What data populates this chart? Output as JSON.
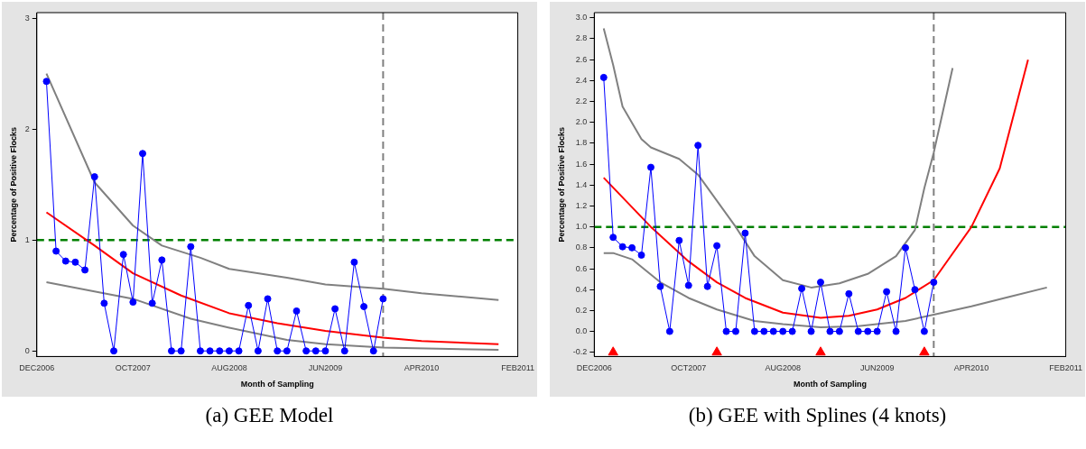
{
  "chart_data": [
    {
      "type": "line",
      "xlabel": "Month of Sampling",
      "ylabel": "Percentage of Positive Flocks",
      "annotations": [
        "(a) GEE Model"
      ],
      "x": [
        "2007-01",
        "2007-02",
        "2007-03",
        "2007-04",
        "2007-05",
        "2007-06",
        "2007-07",
        "2007-08",
        "2007-09",
        "2007-10",
        "2007-11",
        "2007-12",
        "2008-01",
        "2008-02",
        "2008-03",
        "2008-04",
        "2008-05",
        "2008-06",
        "2008-07",
        "2008-08",
        "2008-09",
        "2008-10",
        "2008-11",
        "2008-12",
        "2009-01",
        "2009-02",
        "2009-03",
        "2009-04",
        "2009-05",
        "2009-06",
        "2009-07",
        "2009-08",
        "2009-09",
        "2009-10",
        "2009-11",
        "2009-12"
      ],
      "xlim": [
        "2006-12",
        "2011-02"
      ],
      "xticks": [
        {
          "value": "2006-12",
          "label": "DEC2006"
        },
        {
          "value": "2007-10",
          "label": "OCT2007"
        },
        {
          "value": "2008-08",
          "label": "AUG2008"
        },
        {
          "value": "2009-06",
          "label": "JUN2009"
        },
        {
          "value": "2010-04",
          "label": "APR2010"
        },
        {
          "value": "2011-02",
          "label": "FEB2011"
        }
      ],
      "ylim": [
        -0.05,
        3.05
      ],
      "yticks": [
        0,
        1,
        2,
        3
      ],
      "grid": false,
      "legend": false,
      "series": [
        {
          "color": "#0000ff",
          "marker": "circle",
          "values": [
            2.43,
            0.9,
            0.81,
            0.8,
            0.73,
            1.57,
            0.43,
            0,
            0.87,
            0.44,
            1.78,
            0.43,
            0.82,
            0,
            0,
            0.94,
            0,
            0,
            0,
            0,
            0,
            0.41,
            0,
            0.47,
            0,
            0,
            0.36,
            0,
            0,
            0,
            0.38,
            0,
            0.8,
            0.4,
            0,
            0.47
          ]
        },
        {
          "color": "#ff0000",
          "marker": "none",
          "x": [
            "2007-01",
            "2007-06",
            "2007-10",
            "2008-03",
            "2008-08",
            "2009-01",
            "2009-06",
            "2009-12",
            "2010-04",
            "2010-12"
          ],
          "values": [
            1.25,
            0.95,
            0.7,
            0.5,
            0.34,
            0.25,
            0.18,
            0.12,
            0.09,
            0.06
          ]
        },
        {
          "color": "#808080",
          "marker": "none",
          "x": [
            "2007-01",
            "2007-06",
            "2007-10",
            "2008-01",
            "2008-05",
            "2008-08",
            "2009-02",
            "2009-06",
            "2009-12",
            "2010-04",
            "2010-12"
          ],
          "values": [
            2.5,
            1.52,
            1.13,
            0.95,
            0.84,
            0.74,
            0.66,
            0.6,
            0.56,
            0.52,
            0.46
          ]
        },
        {
          "color": "#808080",
          "marker": "none",
          "x": [
            "2007-01",
            "2007-10",
            "2008-04",
            "2008-08",
            "2009-02",
            "2009-06",
            "2009-12",
            "2010-12"
          ],
          "values": [
            0.62,
            0.47,
            0.29,
            0.21,
            0.1,
            0.06,
            0.03,
            0.01
          ]
        }
      ],
      "ref_lines": [
        {
          "axis": "y",
          "value": 1,
          "color": "#008000",
          "line_style": "dashed"
        },
        {
          "axis": "x",
          "value": "2009-12",
          "color": "#808080",
          "line_style": "dashed"
        }
      ]
    },
    {
      "type": "line",
      "xlabel": "Month of Sampling",
      "ylabel": "Percentage of Positive Flocks",
      "annotations": [
        "(b) GEE with Splines (4 knots)"
      ],
      "x": [
        "2007-01",
        "2007-02",
        "2007-03",
        "2007-04",
        "2007-05",
        "2007-06",
        "2007-07",
        "2007-08",
        "2007-09",
        "2007-10",
        "2007-11",
        "2007-12",
        "2008-01",
        "2008-02",
        "2008-03",
        "2008-04",
        "2008-05",
        "2008-06",
        "2008-07",
        "2008-08",
        "2008-09",
        "2008-10",
        "2008-11",
        "2008-12",
        "2009-01",
        "2009-02",
        "2009-03",
        "2009-04",
        "2009-05",
        "2009-06",
        "2009-07",
        "2009-08",
        "2009-09",
        "2009-10",
        "2009-11",
        "2009-12"
      ],
      "xlim": [
        "2006-12",
        "2011-02"
      ],
      "xticks": [
        {
          "value": "2006-12",
          "label": "DEC2006"
        },
        {
          "value": "2007-10",
          "label": "OCT2007"
        },
        {
          "value": "2008-08",
          "label": "AUG2008"
        },
        {
          "value": "2009-06",
          "label": "JUN2009"
        },
        {
          "value": "2010-04",
          "label": "APR2010"
        },
        {
          "value": "2011-02",
          "label": "FEB2011"
        }
      ],
      "ylim": [
        -0.24,
        3.05
      ],
      "yticks": [
        {
          "value": -0.2,
          "label": "-0.2"
        },
        {
          "value": 0,
          "label": "0.0"
        },
        0.2,
        0.4,
        0.6,
        0.8,
        {
          "value": 1,
          "label": "1.0"
        },
        1.2,
        1.4,
        1.6,
        1.8,
        {
          "value": 2,
          "label": "2.0"
        },
        2.2,
        2.4,
        2.6,
        2.8,
        {
          "value": 3,
          "label": "3.0"
        }
      ],
      "grid": false,
      "legend": false,
      "series": [
        {
          "color": "#0000ff",
          "marker": "circle",
          "values": [
            2.43,
            0.9,
            0.81,
            0.8,
            0.73,
            1.57,
            0.43,
            0,
            0.87,
            0.44,
            1.78,
            0.43,
            0.82,
            0,
            0,
            0.94,
            0,
            0,
            0,
            0,
            0,
            0.41,
            0,
            0.47,
            0,
            0,
            0.36,
            0,
            0,
            0,
            0.38,
            0,
            0.8,
            0.4,
            0,
            0.47
          ]
        },
        {
          "color": "#ff0000",
          "marker": "none",
          "x": [
            "2007-01",
            "2007-06",
            "2007-10",
            "2008-01",
            "2008-04",
            "2008-08",
            "2008-12",
            "2009-03",
            "2009-06",
            "2009-09",
            "2009-12",
            "2010-04",
            "2010-07",
            "2010-10"
          ],
          "values": [
            1.47,
            1.0,
            0.67,
            0.47,
            0.32,
            0.18,
            0.13,
            0.15,
            0.21,
            0.32,
            0.49,
            1.0,
            1.56,
            2.6
          ]
        },
        {
          "color": "#808080",
          "marker": "none",
          "x": [
            "2007-01",
            "2007-02",
            "2007-03",
            "2007-05",
            "2007-06",
            "2007-09",
            "2007-11",
            "2008-01",
            "2008-03",
            "2008-05",
            "2008-08",
            "2008-11",
            "2009-02",
            "2009-05",
            "2009-08",
            "2009-10",
            "2009-11",
            "2009-12",
            "2010-02"
          ],
          "values": [
            2.9,
            2.55,
            2.15,
            1.84,
            1.76,
            1.65,
            1.5,
            1.25,
            1.0,
            0.72,
            0.49,
            0.42,
            0.46,
            0.55,
            0.72,
            0.97,
            1.37,
            1.71,
            2.52
          ]
        },
        {
          "color": "#808080",
          "marker": "none",
          "x": [
            "2007-01",
            "2007-02",
            "2007-04",
            "2007-07",
            "2007-10",
            "2008-01",
            "2008-05",
            "2008-08",
            "2008-12",
            "2009-04",
            "2009-09",
            "2009-12",
            "2010-04",
            "2010-08",
            "2010-12"
          ],
          "values": [
            0.75,
            0.75,
            0.69,
            0.47,
            0.32,
            0.21,
            0.1,
            0.07,
            0.04,
            0.05,
            0.1,
            0.16,
            0.24,
            0.33,
            0.42
          ]
        },
        {
          "type": "scatter",
          "color": "#ff0000",
          "marker": "triangle",
          "x": [
            "2007-02",
            "2008-01",
            "2008-12",
            "2009-11"
          ],
          "values": [
            -0.2,
            -0.2,
            -0.2,
            -0.2
          ]
        }
      ],
      "ref_lines": [
        {
          "axis": "y",
          "value": 1,
          "color": "#008000",
          "line_style": "dashed"
        },
        {
          "axis": "x",
          "value": "2009-12",
          "color": "#808080",
          "line_style": "dashed"
        }
      ]
    }
  ]
}
